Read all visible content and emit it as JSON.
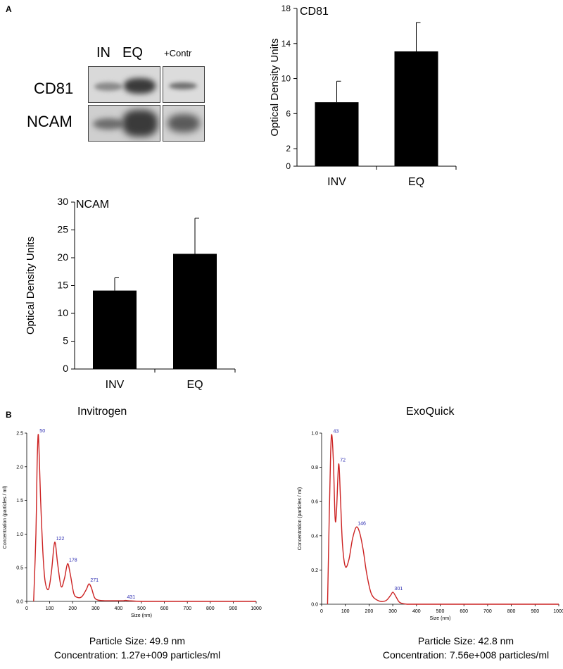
{
  "panel_a_label": "A",
  "panel_b_label": "B",
  "blot": {
    "columns": [
      "IN",
      "EQ"
    ],
    "control_label": "+Contr",
    "rows": [
      "CD81",
      "NCAM"
    ]
  },
  "nta_titles": [
    "Invitrogen",
    "ExoQuick"
  ],
  "summaries": [
    {
      "size": "Particle Size: 49.9 nm",
      "conc": "Concentration: 1.27e+009 particles/ml"
    },
    {
      "size": "Particle Size: 42.8 nm",
      "conc": "Concentration: 7.56e+008 particles/ml"
    }
  ],
  "colors": {
    "bar": "#000000",
    "curve": "#cc2222",
    "peak_label": "#2a2ab0"
  },
  "chart_data": [
    {
      "type": "bar",
      "title": "CD81",
      "ylabel": "Optical Density Units",
      "categories": [
        "INV",
        "EQ"
      ],
      "values": [
        7.3,
        13.1
      ],
      "errors": [
        2.4,
        3.3
      ],
      "ylim": [
        0,
        18
      ],
      "yticks": [
        0,
        2,
        6,
        10,
        14,
        18
      ]
    },
    {
      "type": "bar",
      "title": "NCAM",
      "ylabel": "Optical Density Units",
      "categories": [
        "INV",
        "EQ"
      ],
      "values": [
        14.1,
        20.7
      ],
      "errors": [
        2.3,
        6.4
      ],
      "ylim": [
        0,
        30
      ],
      "yticks": [
        0,
        5,
        10,
        15,
        20,
        25,
        30
      ]
    },
    {
      "type": "line",
      "xlabel": "Size (nm)",
      "ylabel": "Concentration (particles / ml)",
      "xlim": [
        0,
        1000
      ],
      "ylim": [
        0,
        2.5
      ],
      "xticks": [
        0,
        100,
        200,
        300,
        400,
        500,
        600,
        700,
        800,
        900,
        1000
      ],
      "yticks": [
        0,
        0.5,
        1.0,
        1.5,
        2.0,
        2.5
      ],
      "peaks": [
        {
          "x": 50,
          "y": 2.48,
          "label": "50"
        },
        {
          "x": 122,
          "y": 0.88,
          "label": "122"
        },
        {
          "x": 178,
          "y": 0.56,
          "label": "178"
        },
        {
          "x": 271,
          "y": 0.26,
          "label": "271"
        },
        {
          "x": 431,
          "y": 0.01,
          "label": "431"
        }
      ],
      "x": [
        30,
        40,
        45,
        50,
        55,
        60,
        70,
        80,
        95,
        108,
        122,
        135,
        150,
        165,
        178,
        190,
        205,
        220,
        240,
        260,
        271,
        282,
        295,
        310,
        340,
        380,
        420,
        431,
        445,
        500,
        600,
        700,
        800,
        900,
        1000
      ],
      "y": [
        0,
        1.0,
        2.0,
        2.48,
        2.1,
        1.55,
        0.75,
        0.3,
        0.18,
        0.45,
        0.88,
        0.55,
        0.22,
        0.35,
        0.56,
        0.4,
        0.12,
        0.06,
        0.07,
        0.18,
        0.26,
        0.2,
        0.06,
        0.02,
        0.01,
        0.01,
        0.01,
        0.015,
        0.01,
        0.0,
        0.0,
        0.0,
        0.0,
        0.0,
        0.0
      ]
    },
    {
      "type": "line",
      "xlabel": "Size (nm)",
      "ylabel": "Concentration (particles / ml)",
      "xlim": [
        0,
        1000
      ],
      "ylim": [
        0,
        1.0
      ],
      "xticks": [
        0,
        100,
        200,
        300,
        400,
        500,
        600,
        700,
        800,
        900,
        1000
      ],
      "yticks": [
        0,
        0.2,
        0.4,
        0.6,
        0.8,
        1.0
      ],
      "peaks": [
        {
          "x": 43,
          "y": 0.99,
          "label": "43"
        },
        {
          "x": 72,
          "y": 0.82,
          "label": "72"
        },
        {
          "x": 146,
          "y": 0.45,
          "label": "146"
        },
        {
          "x": 301,
          "y": 0.07,
          "label": "301"
        }
      ],
      "x": [
        25,
        32,
        38,
        43,
        50,
        57,
        63,
        72,
        80,
        88,
        100,
        115,
        130,
        146,
        160,
        175,
        190,
        210,
        240,
        270,
        290,
        301,
        315,
        330,
        360,
        400,
        500,
        600,
        700,
        800,
        900,
        1000
      ],
      "y": [
        0,
        0.5,
        0.88,
        0.99,
        0.82,
        0.5,
        0.55,
        0.82,
        0.6,
        0.35,
        0.22,
        0.26,
        0.38,
        0.45,
        0.42,
        0.32,
        0.18,
        0.06,
        0.02,
        0.02,
        0.05,
        0.07,
        0.04,
        0.01,
        0.0,
        0.0,
        0.0,
        0.0,
        0.0,
        0.0,
        0.0,
        0.0
      ]
    }
  ]
}
